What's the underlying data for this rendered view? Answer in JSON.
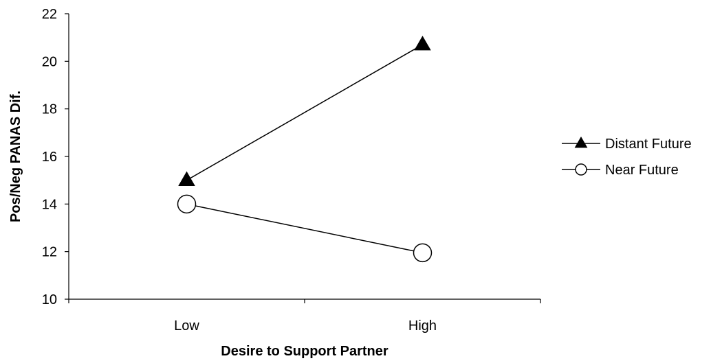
{
  "chart_data": {
    "type": "line",
    "title": "",
    "xlabel": "Desire to Support Partner",
    "ylabel": "Pos/Neg PANAS Dif.",
    "categories": [
      "Low",
      "High"
    ],
    "ylim": [
      10,
      22
    ],
    "yticks": [
      10,
      12,
      14,
      16,
      18,
      20,
      22
    ],
    "grid": false,
    "legend_position": "right",
    "series": [
      {
        "name": "Distant Future",
        "marker": "filled-triangle-icon",
        "values": [
          15.0,
          20.7
        ]
      },
      {
        "name": "Near Future",
        "marker": "open-circle-icon",
        "values": [
          14.0,
          11.95
        ]
      }
    ],
    "colors": {
      "line": "#000000",
      "background": "#ffffff"
    }
  }
}
